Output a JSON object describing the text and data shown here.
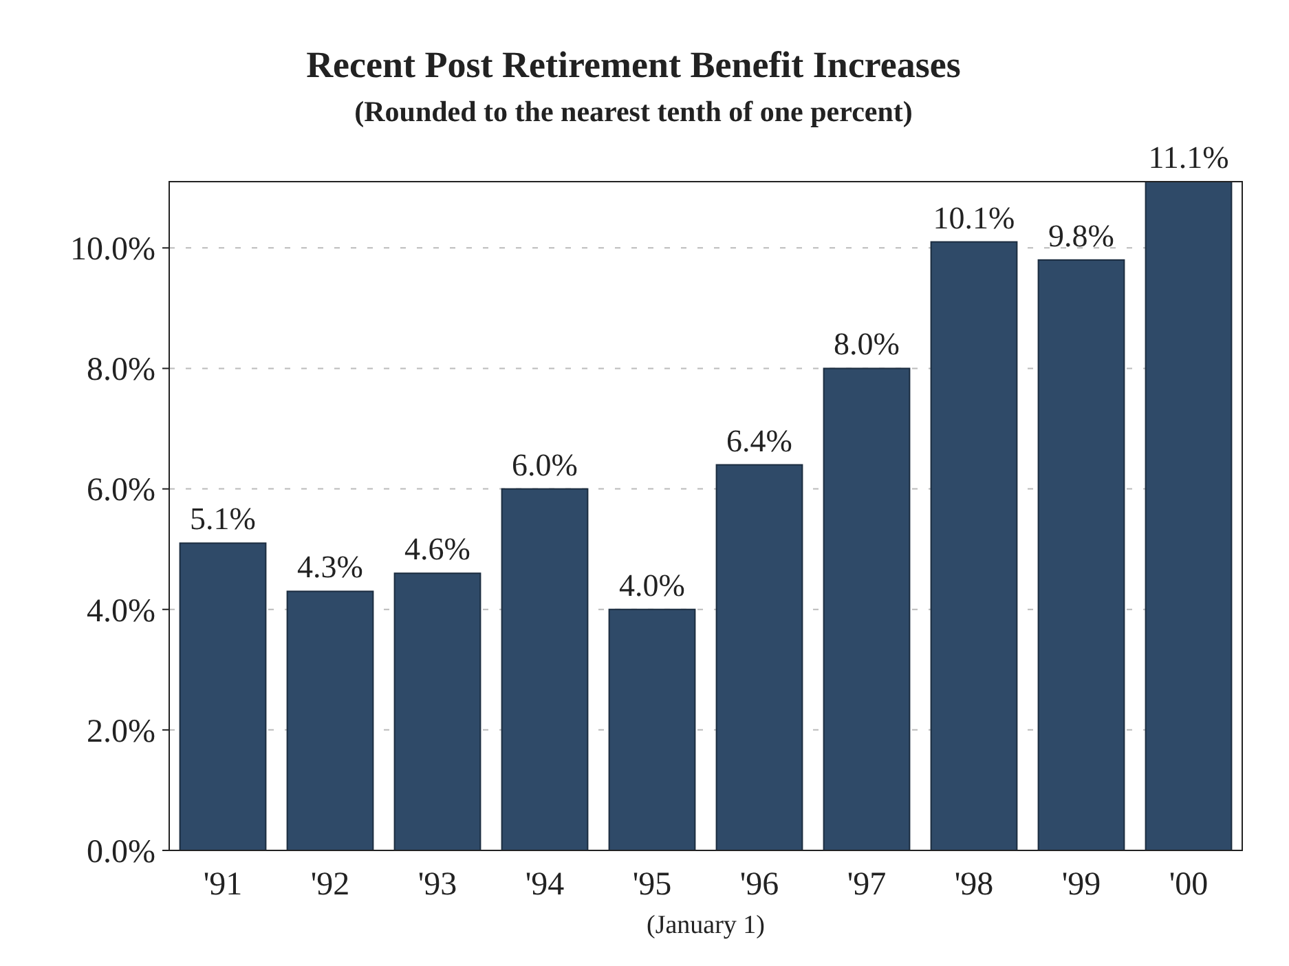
{
  "chart_data": {
    "type": "bar",
    "title": "Recent Post Retirement Benefit Increases",
    "subtitle": "(Rounded to the nearest tenth of one percent)",
    "xlabel": "(January 1)",
    "categories": [
      "'91",
      "'92",
      "'93",
      "'94",
      "'95",
      "'96",
      "'97",
      "'98",
      "'99",
      "'00"
    ],
    "values": [
      5.1,
      4.3,
      4.6,
      6.0,
      4.0,
      6.4,
      8.0,
      10.1,
      9.8,
      11.1
    ],
    "value_labels": [
      "5.1%",
      "4.3%",
      "4.6%",
      "6.0%",
      "4.0%",
      "6.4%",
      "8.0%",
      "10.1%",
      "9.8%",
      "11.1%"
    ],
    "color": "#2f4a68",
    "ylim": [
      0,
      11.1
    ],
    "yticks": [
      {
        "value": 0,
        "label": "0.0%"
      },
      {
        "value": 2,
        "label": "2.0%"
      },
      {
        "value": 4,
        "label": "4.0%"
      },
      {
        "value": 6,
        "label": "6.0%"
      },
      {
        "value": 8,
        "label": "8.0%"
      },
      {
        "value": 10,
        "label": "10.0%"
      }
    ],
    "grid": "y"
  }
}
